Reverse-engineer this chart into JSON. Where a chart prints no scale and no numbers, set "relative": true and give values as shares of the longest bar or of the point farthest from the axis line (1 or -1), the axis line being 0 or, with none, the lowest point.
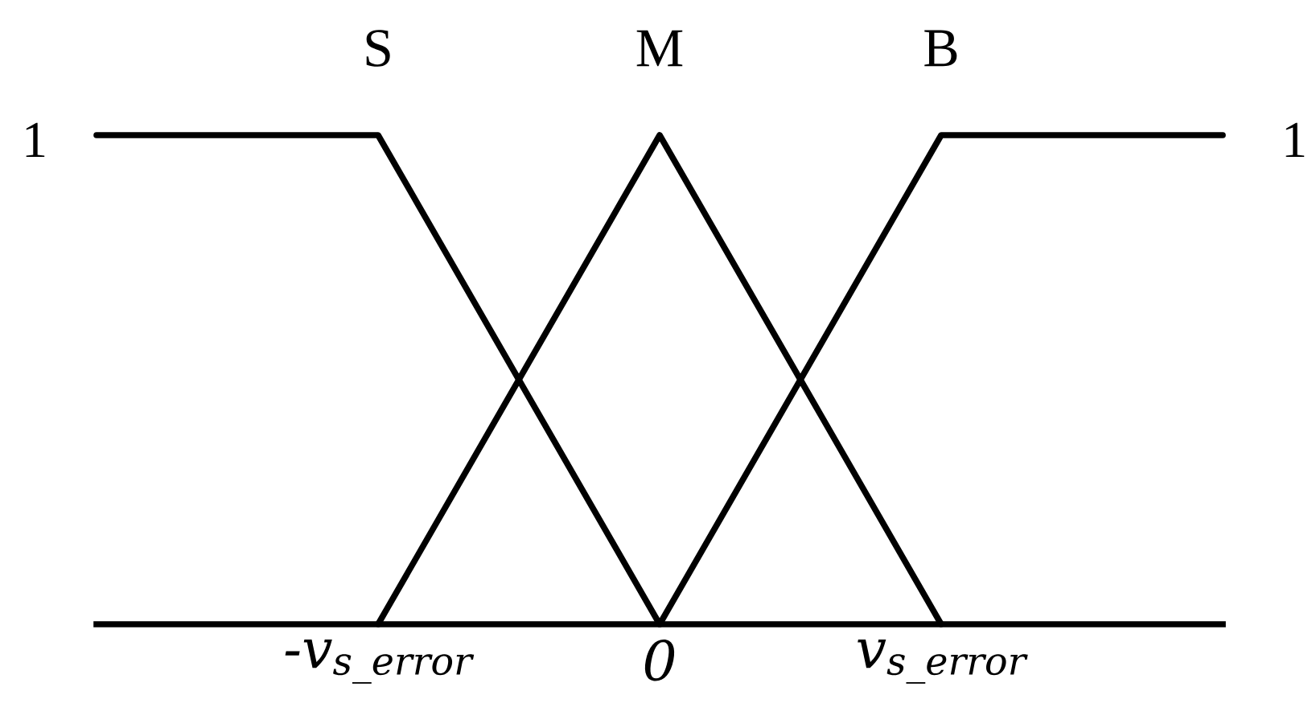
{
  "chart_data": {
    "type": "line",
    "relative": true,
    "categories": [
      null,
      "-v$_{s_error}$",
      "0",
      "v$_{s_error}$",
      null
    ],
    "series": [
      {
        "name": "S",
        "color": "#000000",
        "values": [
          1,
          1,
          0,
          null,
          null
        ]
      },
      {
        "name": "M",
        "color": "#000000",
        "values": [
          null,
          0,
          1,
          0,
          null
        ]
      },
      {
        "name": "B",
        "color": "#000000",
        "values": [
          null,
          null,
          0,
          1,
          1
        ]
      }
    ],
    "annotations": [
      "1",
      "1"
    ],
    "grid": false,
    "legend": false,
    "marker": "none",
    "line_style": "solid"
  }
}
